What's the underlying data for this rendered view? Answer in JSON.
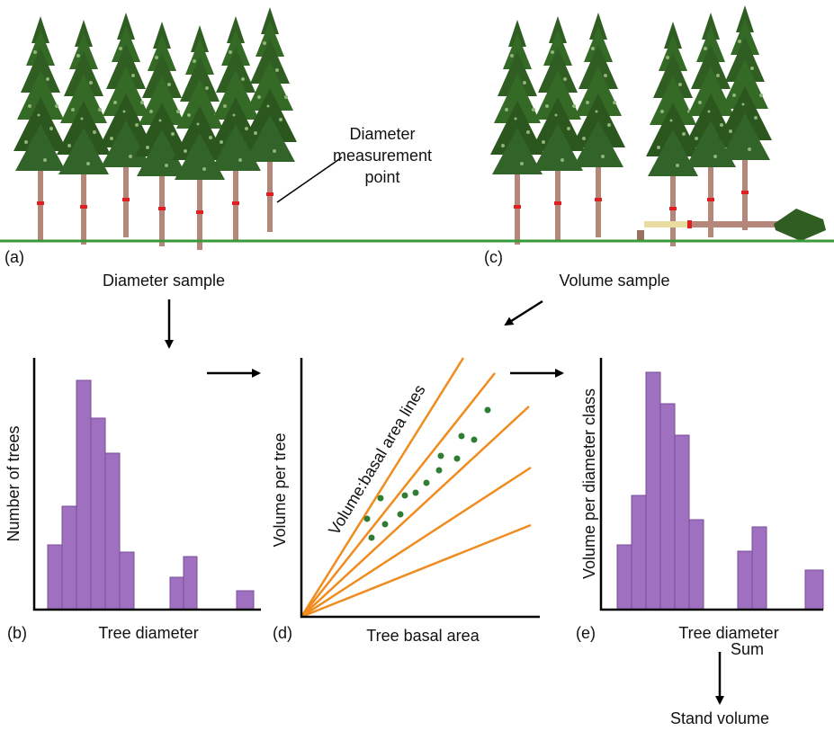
{
  "panel_a": {
    "label": "(a)",
    "callout": [
      "Diameter",
      "measurement",
      "point"
    ],
    "caption": "Diameter sample"
  },
  "panel_c": {
    "label": "(c)",
    "caption": "Volume sample"
  },
  "panel_b": {
    "label": "(b)",
    "y_label": "Number of trees",
    "x_label": "Tree diameter"
  },
  "panel_d": {
    "label": "(d)",
    "y_label": "Volume per tree",
    "x_label": "Tree basal area",
    "line_label": "Volume:basal area lines"
  },
  "panel_e": {
    "label": "(e)",
    "y_label": "Volume per diameter class",
    "x_label": "Tree diameter"
  },
  "sum": {
    "label": "Sum",
    "result": "Stand volume"
  }
}
